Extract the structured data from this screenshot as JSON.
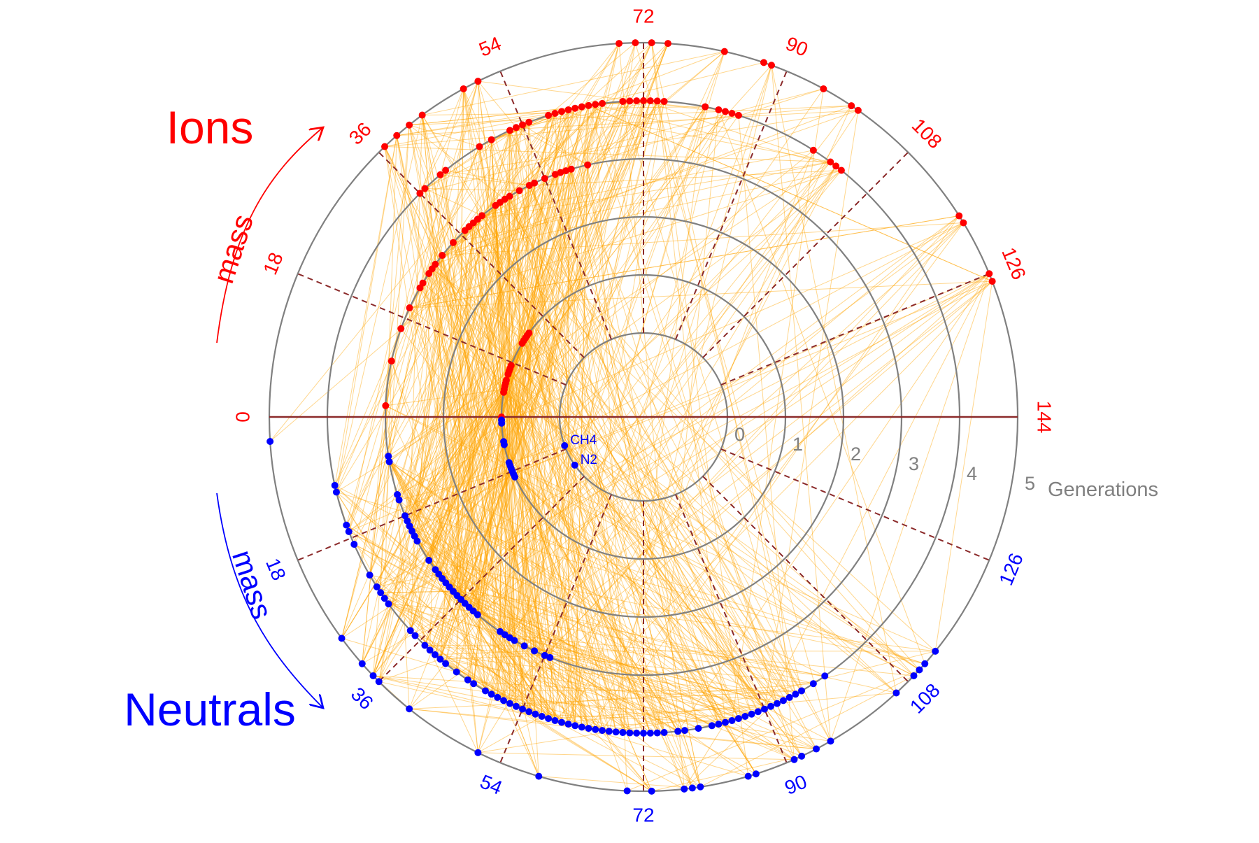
{
  "ions_label": "Ions",
  "neutrals_label": "Neutrals",
  "mass_label": "mass",
  "generations_label": "Generations",
  "colors": {
    "ions": "#ff0000",
    "neutrals": "#0000ff",
    "links": "#ffa500",
    "rings": "#808080",
    "spokes": "#8b2a2a"
  },
  "ring_labels": [
    "0",
    "1",
    "2",
    "3",
    "4",
    "5"
  ],
  "ion_mass_ticks": [
    "0",
    "18",
    "36",
    "54",
    "72",
    "90",
    "108",
    "126",
    "144"
  ],
  "neutral_mass_ticks": [
    "18",
    "36",
    "54",
    "72",
    "90",
    "108",
    "126"
  ],
  "seed_labels": [
    "CH4",
    "N2"
  ],
  "chart_data": {
    "type": "scatter",
    "coordinate_system": "polar",
    "radial_axis": {
      "label": "Generations",
      "range": [
        0,
        5
      ]
    },
    "angular_axis": {
      "label": "mass",
      "range": [
        0,
        144
      ]
    },
    "ions": [
      [
        37,
        5
      ],
      [
        39,
        5
      ],
      [
        41,
        5
      ],
      [
        43,
        5
      ],
      [
        49,
        5
      ],
      [
        51,
        5
      ],
      [
        69,
        5
      ],
      [
        71,
        5
      ],
      [
        73,
        5
      ],
      [
        75,
        5
      ],
      [
        82,
        5
      ],
      [
        87,
        5
      ],
      [
        88,
        5
      ],
      [
        95,
        5
      ],
      [
        99,
        5
      ],
      [
        100,
        5
      ],
      [
        118,
        5
      ],
      [
        119,
        5
      ],
      [
        126,
        5
      ],
      [
        127,
        5
      ],
      [
        36,
        4
      ],
      [
        37,
        4
      ],
      [
        40,
        4
      ],
      [
        41,
        4
      ],
      [
        47,
        4
      ],
      [
        49,
        4
      ],
      [
        52,
        4
      ],
      [
        53,
        4
      ],
      [
        54,
        4
      ],
      [
        55,
        4
      ],
      [
        58,
        4
      ],
      [
        59,
        4
      ],
      [
        60,
        4
      ],
      [
        61,
        4
      ],
      [
        62,
        4
      ],
      [
        63,
        4
      ],
      [
        64,
        4
      ],
      [
        65,
        4
      ],
      [
        66,
        4
      ],
      [
        69,
        4
      ],
      [
        70,
        4
      ],
      [
        71,
        4
      ],
      [
        72,
        4
      ],
      [
        73,
        4
      ],
      [
        74,
        4
      ],
      [
        75,
        4
      ],
      [
        81,
        4
      ],
      [
        83,
        4
      ],
      [
        84,
        4
      ],
      [
        85,
        4
      ],
      [
        86,
        4
      ],
      [
        98,
        4
      ],
      [
        101,
        4
      ],
      [
        102,
        4
      ],
      [
        103,
        4
      ],
      [
        2,
        3
      ],
      [
        10,
        3
      ],
      [
        16,
        3
      ],
      [
        20,
        3
      ],
      [
        24,
        3
      ],
      [
        25,
        3
      ],
      [
        27,
        3
      ],
      [
        28,
        3
      ],
      [
        29,
        3
      ],
      [
        31,
        3
      ],
      [
        34,
        3
      ],
      [
        37,
        3
      ],
      [
        38,
        3
      ],
      [
        39,
        3
      ],
      [
        40,
        3
      ],
      [
        41,
        3
      ],
      [
        44,
        3
      ],
      [
        45,
        3
      ],
      [
        46,
        3
      ],
      [
        47,
        3
      ],
      [
        49,
        3
      ],
      [
        51,
        3
      ],
      [
        52,
        3
      ],
      [
        54,
        3
      ],
      [
        56,
        3
      ],
      [
        57,
        3
      ],
      [
        58,
        3
      ],
      [
        59,
        3
      ],
      [
        62,
        3
      ],
      [
        0,
        1
      ],
      [
        8,
        1
      ],
      [
        9,
        1
      ],
      [
        10,
        1
      ],
      [
        11,
        1
      ],
      [
        12,
        1
      ],
      [
        14,
        1
      ],
      [
        15,
        1
      ],
      [
        16,
        1
      ],
      [
        17,
        1
      ],
      [
        25,
        1
      ],
      [
        26,
        1
      ],
      [
        27,
        1
      ],
      [
        28,
        1
      ],
      [
        29,
        1
      ]
    ],
    "neutrals": [
      [
        3,
        5
      ],
      [
        29,
        5
      ],
      [
        33,
        5
      ],
      [
        35,
        5
      ],
      [
        36,
        5
      ],
      [
        41,
        5
      ],
      [
        51,
        5
      ],
      [
        59,
        5
      ],
      [
        70,
        5
      ],
      [
        73,
        5
      ],
      [
        77,
        5
      ],
      [
        78,
        5
      ],
      [
        79,
        5
      ],
      [
        85,
        5
      ],
      [
        86,
        5
      ],
      [
        91,
        5
      ],
      [
        92,
        5
      ],
      [
        94,
        5
      ],
      [
        96,
        5
      ],
      [
        106,
        5
      ],
      [
        109,
        5
      ],
      [
        110,
        5
      ],
      [
        111,
        5
      ],
      [
        113,
        5
      ],
      [
        10,
        4
      ],
      [
        11,
        4
      ],
      [
        16,
        4
      ],
      [
        17,
        4
      ],
      [
        19,
        4
      ],
      [
        24,
        4
      ],
      [
        26,
        4
      ],
      [
        27,
        4
      ],
      [
        28,
        4
      ],
      [
        29,
        4
      ],
      [
        34,
        4
      ],
      [
        35,
        4
      ],
      [
        37,
        4
      ],
      [
        38,
        4
      ],
      [
        39,
        4
      ],
      [
        40,
        4
      ],
      [
        41,
        4
      ],
      [
        43,
        4
      ],
      [
        45,
        4
      ],
      [
        46,
        4
      ],
      [
        48,
        4
      ],
      [
        49,
        4
      ],
      [
        50,
        4
      ],
      [
        51,
        4
      ],
      [
        52,
        4
      ],
      [
        53,
        4
      ],
      [
        54,
        4
      ],
      [
        55,
        4
      ],
      [
        56,
        4
      ],
      [
        57,
        4
      ],
      [
        58,
        4
      ],
      [
        59,
        4
      ],
      [
        60,
        4
      ],
      [
        61,
        4
      ],
      [
        62,
        4
      ],
      [
        63,
        4
      ],
      [
        64,
        4
      ],
      [
        65,
        4
      ],
      [
        66,
        4
      ],
      [
        67,
        4
      ],
      [
        68,
        4
      ],
      [
        69,
        4
      ],
      [
        70,
        4
      ],
      [
        71,
        4
      ],
      [
        72,
        4
      ],
      [
        73,
        4
      ],
      [
        74,
        4
      ],
      [
        75,
        4
      ],
      [
        77,
        4
      ],
      [
        78,
        4
      ],
      [
        80,
        4
      ],
      [
        82,
        4
      ],
      [
        83,
        4
      ],
      [
        84,
        4
      ],
      [
        85,
        4
      ],
      [
        86,
        4
      ],
      [
        87,
        4
      ],
      [
        88,
        4
      ],
      [
        89,
        4
      ],
      [
        90,
        4
      ],
      [
        91,
        4
      ],
      [
        92,
        4
      ],
      [
        93,
        4
      ],
      [
        94,
        4
      ],
      [
        95,
        4
      ],
      [
        96,
        4
      ],
      [
        98,
        4
      ],
      [
        100,
        4
      ],
      [
        7,
        3
      ],
      [
        8,
        3
      ],
      [
        14,
        3
      ],
      [
        15,
        3
      ],
      [
        18,
        3
      ],
      [
        19,
        3
      ],
      [
        20,
        3
      ],
      [
        21,
        3
      ],
      [
        22,
        3
      ],
      [
        23,
        3
      ],
      [
        27,
        3
      ],
      [
        29,
        3
      ],
      [
        30,
        3
      ],
      [
        31,
        3
      ],
      [
        32,
        3
      ],
      [
        33,
        3
      ],
      [
        34,
        3
      ],
      [
        35,
        3
      ],
      [
        36,
        3
      ],
      [
        37,
        3
      ],
      [
        38,
        3
      ],
      [
        39,
        3
      ],
      [
        40,
        3
      ],
      [
        45,
        3
      ],
      [
        46,
        3
      ],
      [
        47,
        3
      ],
      [
        48,
        3
      ],
      [
        50,
        3
      ],
      [
        52,
        3
      ],
      [
        54,
        3
      ],
      [
        55,
        3
      ],
      [
        1,
        1
      ],
      [
        2,
        1
      ],
      [
        8,
        1
      ],
      [
        9,
        1
      ],
      [
        15,
        1
      ],
      [
        16,
        1
      ],
      [
        17,
        1
      ],
      [
        18,
        1
      ],
      [
        19,
        1
      ],
      [
        20,
        1
      ],
      [
        16,
        0
      ],
      [
        28,
        0
      ]
    ]
  }
}
